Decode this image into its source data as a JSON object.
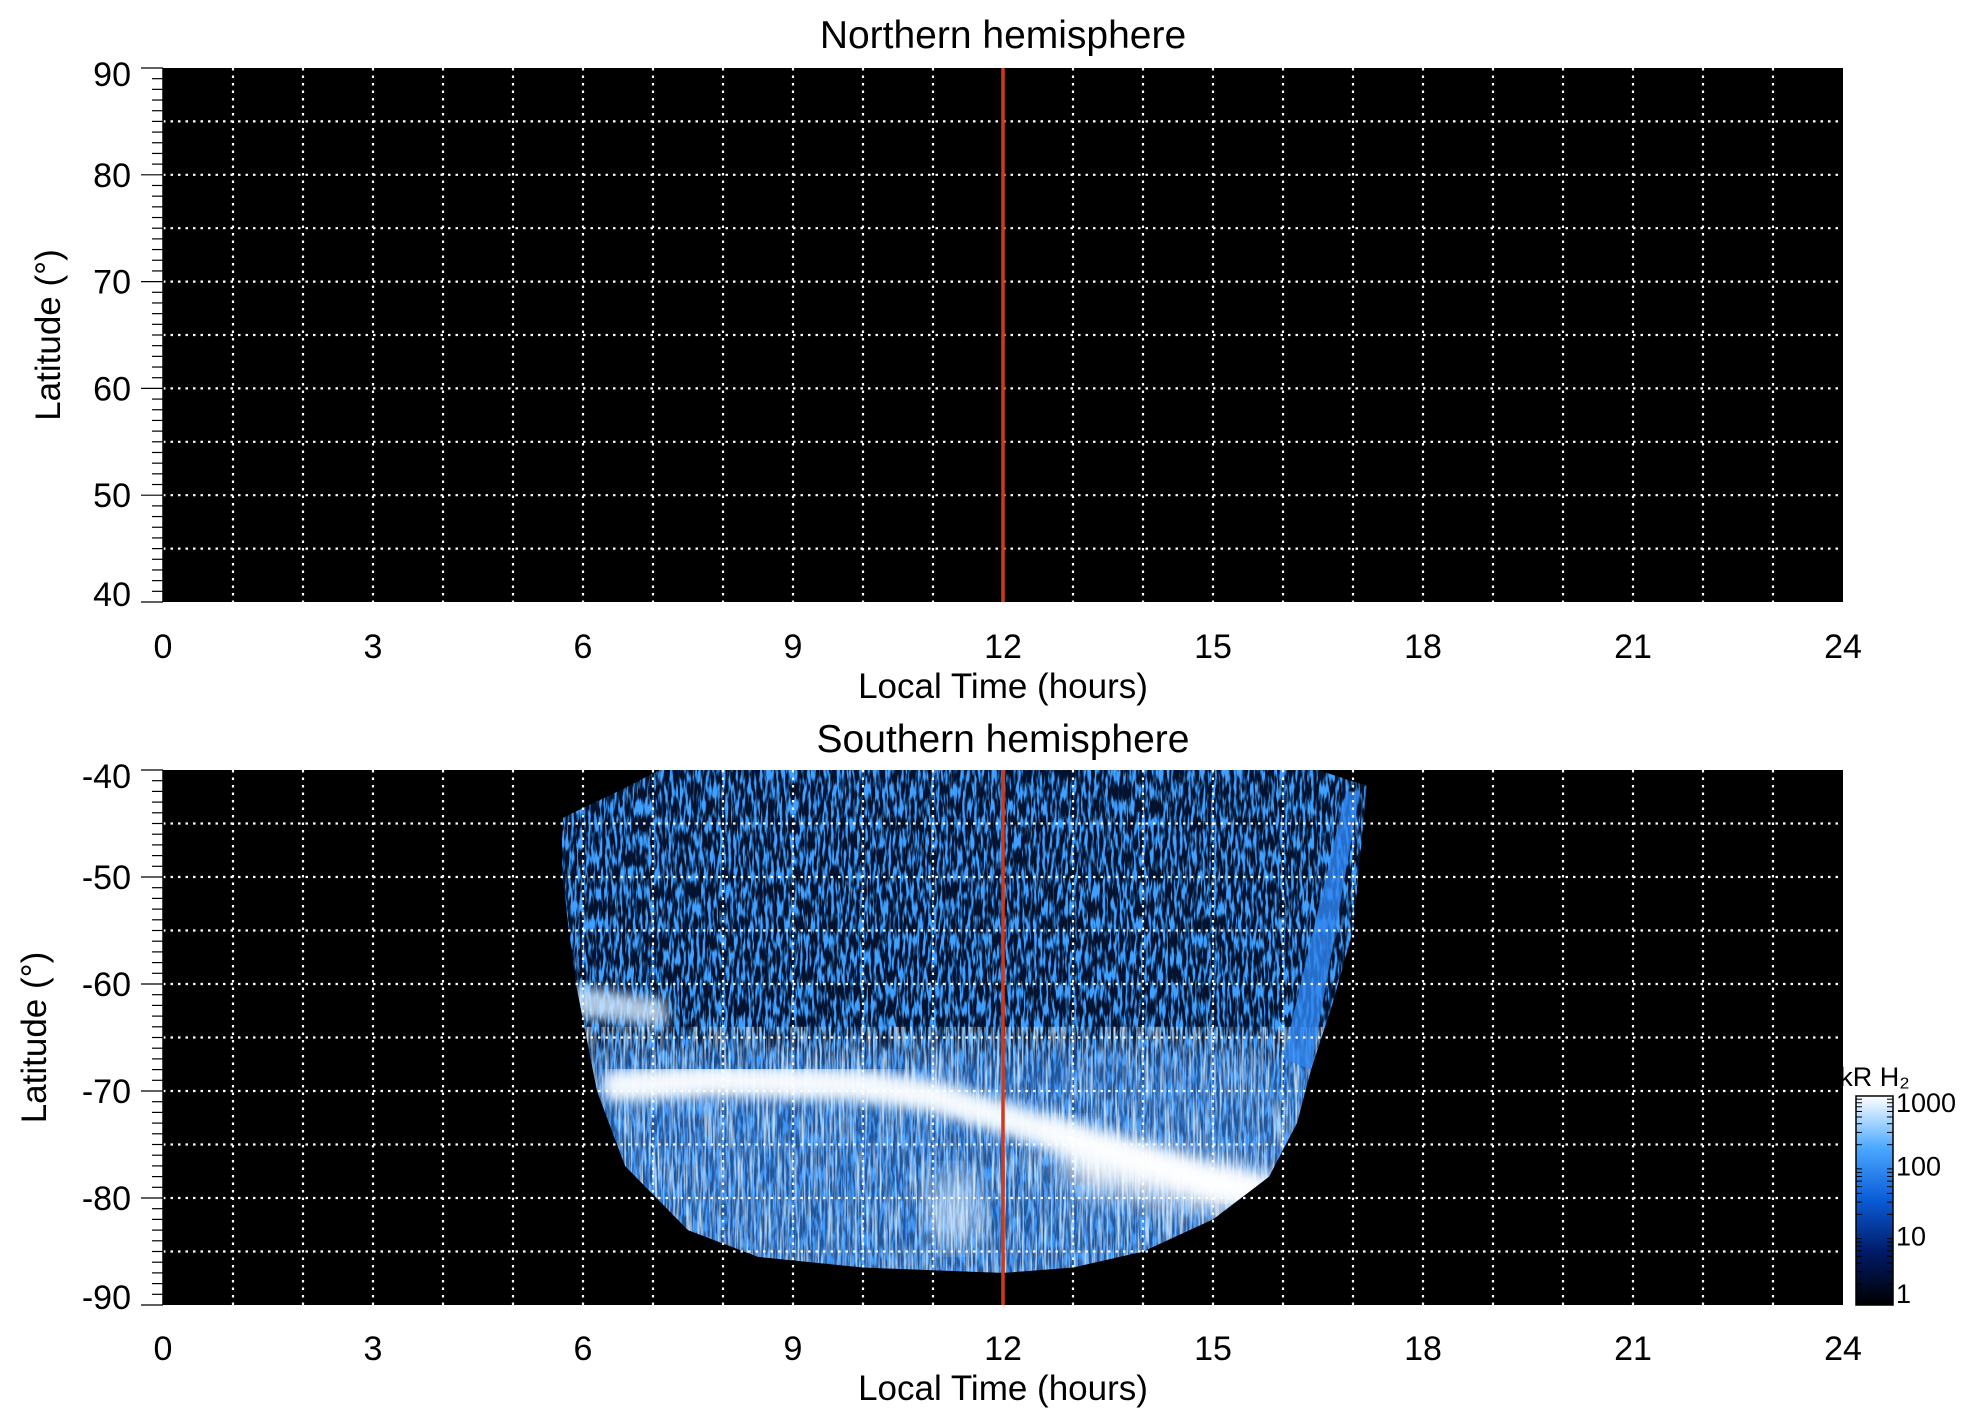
{
  "chart_data": [
    {
      "type": "heatmap",
      "title": "Northern hemisphere",
      "xlabel": "Local Time (hours)",
      "ylabel": "Latitude (°)",
      "xlim": [
        0,
        24
      ],
      "ylim": [
        40,
        90
      ],
      "x_ticks": [
        "0",
        "3",
        "6",
        "9",
        "12",
        "15",
        "18",
        "21",
        "24"
      ],
      "y_ticks": [
        "40",
        "50",
        "60",
        "70",
        "80",
        "90"
      ],
      "grid": true,
      "grid_style": "white dotted",
      "background": "#000000",
      "marker_line": {
        "x": 12,
        "color": "#d03a1a"
      },
      "emission": "none"
    },
    {
      "type": "heatmap",
      "title": "Southern hemisphere",
      "xlabel": "Local Time (hours)",
      "ylabel": "Latitude (°)",
      "xlim": [
        0,
        24
      ],
      "ylim": [
        -90,
        -40
      ],
      "x_ticks": [
        "0",
        "3",
        "6",
        "9",
        "12",
        "15",
        "18",
        "21",
        "24"
      ],
      "y_ticks": [
        "-40",
        "-50",
        "-60",
        "-70",
        "-80",
        "-90"
      ],
      "grid": true,
      "grid_style": "white dotted",
      "background": "#000000",
      "marker_line": {
        "x": 12,
        "color": "#d03a1a"
      },
      "coverage": {
        "lt_range": [
          5.7,
          17.2
        ],
        "lat_range": [
          -87,
          -40
        ],
        "boundary": [
          [
            5.7,
            -44.5
          ],
          [
            6.5,
            -42
          ],
          [
            7.1,
            -40
          ],
          [
            16.5,
            -40
          ],
          [
            17.2,
            -41.5
          ],
          [
            17.0,
            -55
          ],
          [
            16.7,
            -62
          ],
          [
            16.4,
            -68
          ],
          [
            16.2,
            -73
          ],
          [
            15.8,
            -78
          ],
          [
            15.0,
            -82
          ],
          [
            14.0,
            -85
          ],
          [
            13.0,
            -86.5
          ],
          [
            12.0,
            -87
          ],
          [
            10.0,
            -86.5
          ],
          [
            8.5,
            -85.5
          ],
          [
            7.5,
            -83
          ],
          [
            6.6,
            -77
          ],
          [
            6.2,
            -70
          ],
          [
            5.9,
            -60
          ],
          [
            5.7,
            -50
          ]
        ]
      },
      "auroral_oval": [
        {
          "lt": 6.0,
          "lat": -61.5
        },
        {
          "lt": 7.0,
          "lat": -63.5
        },
        {
          "lt": 6.5,
          "lat": -69.5
        },
        {
          "lt": 8.0,
          "lat": -69.0
        },
        {
          "lt": 10.0,
          "lat": -69.5
        },
        {
          "lt": 11.0,
          "lat": -70.5
        },
        {
          "lt": 12.0,
          "lat": -72.5
        },
        {
          "lt": 13.0,
          "lat": -74.5
        },
        {
          "lt": 14.0,
          "lat": -76.5
        },
        {
          "lt": 15.0,
          "lat": -78.5
        },
        {
          "lt": 15.8,
          "lat": -79.5
        }
      ],
      "colorbar": {
        "label": "kR H₂",
        "scale": "log",
        "ticks": [
          "1",
          "10",
          "100",
          "1000"
        ],
        "range": [
          1,
          1000
        ],
        "colors": [
          "#000000",
          "#001a66",
          "#0a5bd6",
          "#4aa8ff",
          "#ffffff"
        ]
      }
    }
  ]
}
